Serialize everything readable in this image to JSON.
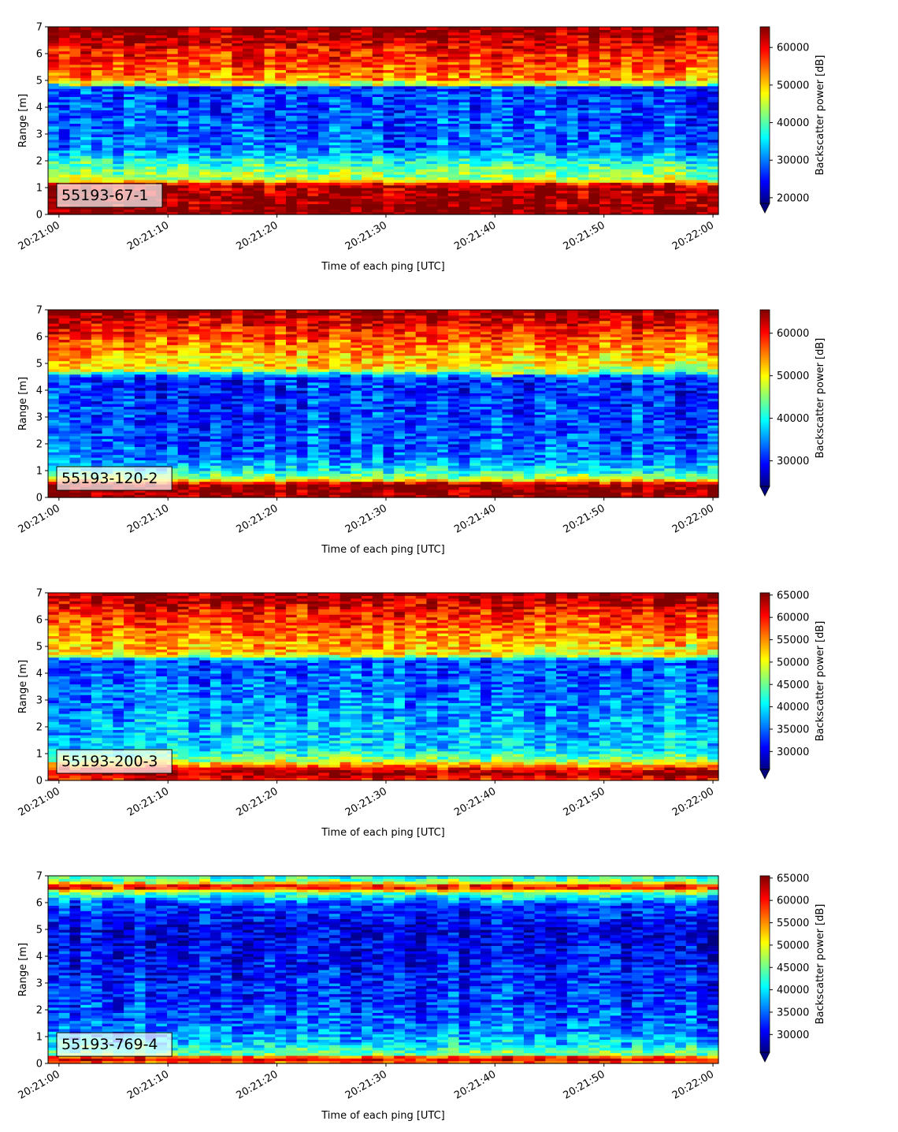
{
  "chart_data": [
    {
      "type": "heatmap",
      "panel_label": "55193-67-1",
      "xlabel": "Time of each ping [UTC]",
      "ylabel": "Range [m]",
      "x_ticks": [
        "20:21:00",
        "20:21:10",
        "20:21:20",
        "20:21:30",
        "20:21:40",
        "20:21:50",
        "20:22:00"
      ],
      "y_ticks": [
        "0",
        "1",
        "2",
        "3",
        "4",
        "5",
        "6",
        "7"
      ],
      "xlim_seconds": [
        -1,
        60.5
      ],
      "ylim": [
        0,
        7
      ],
      "colorbar_label": "Backscatter power [dB]",
      "colorbar_ticks": [
        "20000",
        "30000",
        "40000",
        "50000",
        "60000"
      ],
      "colorbar_range": [
        18500,
        65500
      ],
      "colormap": "jet",
      "profile": [
        [
          0,
          65000
        ],
        [
          0.2,
          65000
        ],
        [
          1.1,
          63000
        ],
        [
          1.3,
          45000
        ],
        [
          1.6,
          42000
        ],
        [
          2.0,
          37000
        ],
        [
          2.5,
          29000
        ],
        [
          4.8,
          27000
        ],
        [
          5.0,
          52000
        ],
        [
          5.5,
          56000
        ],
        [
          6.0,
          58000
        ],
        [
          6.5,
          62000
        ],
        [
          7,
          65000
        ]
      ],
      "features": [
        {
          "type": "horizontal_band",
          "y": 4.9,
          "value": 45000,
          "from_x": 0,
          "to_x": 60
        }
      ]
    },
    {
      "type": "heatmap",
      "panel_label": "55193-120-2",
      "xlabel": "Time of each ping [UTC]",
      "ylabel": "Range [m]",
      "x_ticks": [
        "20:21:00",
        "20:21:10",
        "20:21:20",
        "20:21:30",
        "20:21:40",
        "20:21:50",
        "20:22:00"
      ],
      "y_ticks": [
        "0",
        "1",
        "2",
        "3",
        "4",
        "5",
        "6",
        "7"
      ],
      "xlim_seconds": [
        -1,
        60.5
      ],
      "ylim": [
        0,
        7
      ],
      "colorbar_label": "Backscatter power [dB]",
      "colorbar_ticks": [
        "30000",
        "40000",
        "50000",
        "60000"
      ],
      "colorbar_range": [
        24000,
        65500
      ],
      "colormap": "jet",
      "profile": [
        [
          0,
          65000
        ],
        [
          0.5,
          65000
        ],
        [
          0.7,
          47000
        ],
        [
          1.0,
          40000
        ],
        [
          1.5,
          34000
        ],
        [
          2.5,
          32000
        ],
        [
          4.5,
          31000
        ],
        [
          4.8,
          50000
        ],
        [
          5.5,
          54000
        ],
        [
          6.2,
          59000
        ],
        [
          7,
          65000
        ]
      ],
      "features": [
        {
          "type": "sloped_band",
          "y_start": 4.6,
          "y_end": 4.95,
          "value": 48000,
          "from_x": 40,
          "to_x": 60
        }
      ]
    },
    {
      "type": "heatmap",
      "panel_label": "55193-200-3",
      "xlabel": "Time of each ping [UTC]",
      "ylabel": "Range [m]",
      "x_ticks": [
        "20:21:00",
        "20:21:10",
        "20:21:20",
        "20:21:30",
        "20:21:40",
        "20:21:50",
        "20:22:00"
      ],
      "y_ticks": [
        "0",
        "1",
        "2",
        "3",
        "4",
        "5",
        "6",
        "7"
      ],
      "xlim_seconds": [
        -1,
        60.5
      ],
      "ylim": [
        0,
        7
      ],
      "colorbar_label": "Backscatter power [dB]",
      "colorbar_ticks": [
        "30000",
        "35000",
        "40000",
        "45000",
        "50000",
        "55000",
        "60000",
        "65000"
      ],
      "colorbar_range": [
        26000,
        65500
      ],
      "colormap": "jet",
      "profile": [
        [
          0,
          60000
        ],
        [
          0.3,
          65000
        ],
        [
          0.5,
          58000
        ],
        [
          0.8,
          46000
        ],
        [
          1.2,
          40000
        ],
        [
          2.5,
          37000
        ],
        [
          4.5,
          34000
        ],
        [
          4.7,
          52000
        ],
        [
          5.5,
          56000
        ],
        [
          6.3,
          60000
        ],
        [
          7,
          65000
        ]
      ],
      "features": [
        {
          "type": "sloped_band",
          "y_start": 4.7,
          "y_end": 5.0,
          "value": 50000,
          "from_x": 38,
          "to_x": 60
        }
      ]
    },
    {
      "type": "heatmap",
      "panel_label": "55193-769-4",
      "xlabel": "Time of each ping [UTC]",
      "ylabel": "Range [m]",
      "x_ticks": [
        "20:21:00",
        "20:21:10",
        "20:21:20",
        "20:21:30",
        "20:21:40",
        "20:21:50",
        "20:22:00"
      ],
      "y_ticks": [
        "0",
        "1",
        "2",
        "3",
        "4",
        "5",
        "6",
        "7"
      ],
      "xlim_seconds": [
        -1,
        60.5
      ],
      "ylim": [
        0,
        7
      ],
      "colorbar_label": "Backscatter power [dB]",
      "colorbar_ticks": [
        "30000",
        "35000",
        "40000",
        "45000",
        "50000",
        "55000",
        "60000",
        "65000"
      ],
      "colorbar_range": [
        26000,
        65500
      ],
      "colormap": "jet",
      "profile": [
        [
          0,
          55000
        ],
        [
          0.2,
          63000
        ],
        [
          0.35,
          46000
        ],
        [
          0.7,
          40000
        ],
        [
          1.2,
          36000
        ],
        [
          2.5,
          33000
        ],
        [
          5.0,
          30000
        ],
        [
          6.0,
          34000
        ],
        [
          6.4,
          46000
        ],
        [
          6.6,
          64000
        ],
        [
          6.8,
          46000
        ],
        [
          7,
          42000
        ]
      ],
      "features": []
    }
  ]
}
